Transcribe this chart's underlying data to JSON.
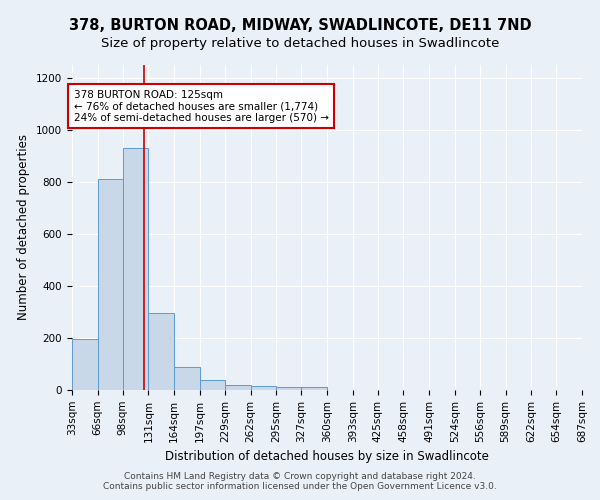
{
  "title": "378, BURTON ROAD, MIDWAY, SWADLINCOTE, DE11 7ND",
  "subtitle": "Size of property relative to detached houses in Swadlincote",
  "xlabel": "Distribution of detached houses by size in Swadlincote",
  "ylabel": "Number of detached properties",
  "footnote1": "Contains HM Land Registry data © Crown copyright and database right 2024.",
  "footnote2": "Contains public sector information licensed under the Open Government Licence v3.0.",
  "bar_color": "#c8d8e8",
  "bar_edge_color": "#5b9bd5",
  "background_color": "#eaf0f8",
  "grid_color": "#ffffff",
  "annotation_box_color": "#ffffff",
  "annotation_border_color": "#cc0000",
  "vline_color": "#cc0000",
  "vline_x": 125,
  "annotation_text_line1": "378 BURTON ROAD: 125sqm",
  "annotation_text_line2": "← 76% of detached houses are smaller (1,774)",
  "annotation_text_line3": "24% of semi-detached houses are larger (570) →",
  "bin_edges": [
    33,
    66,
    98,
    131,
    164,
    197,
    229,
    262,
    295,
    327,
    360,
    393,
    425,
    458,
    491,
    524,
    556,
    589,
    622,
    654,
    687
  ],
  "bar_heights": [
    195,
    810,
    930,
    295,
    88,
    38,
    20,
    15,
    12,
    10,
    0,
    0,
    0,
    0,
    0,
    0,
    0,
    0,
    0,
    0
  ],
  "ylim": [
    0,
    1250
  ],
  "yticks": [
    0,
    200,
    400,
    600,
    800,
    1000,
    1200
  ],
  "title_fontsize": 10.5,
  "subtitle_fontsize": 9.5,
  "axis_label_fontsize": 8.5,
  "tick_fontsize": 7.5,
  "annotation_fontsize": 7.5,
  "footnote_fontsize": 6.5
}
